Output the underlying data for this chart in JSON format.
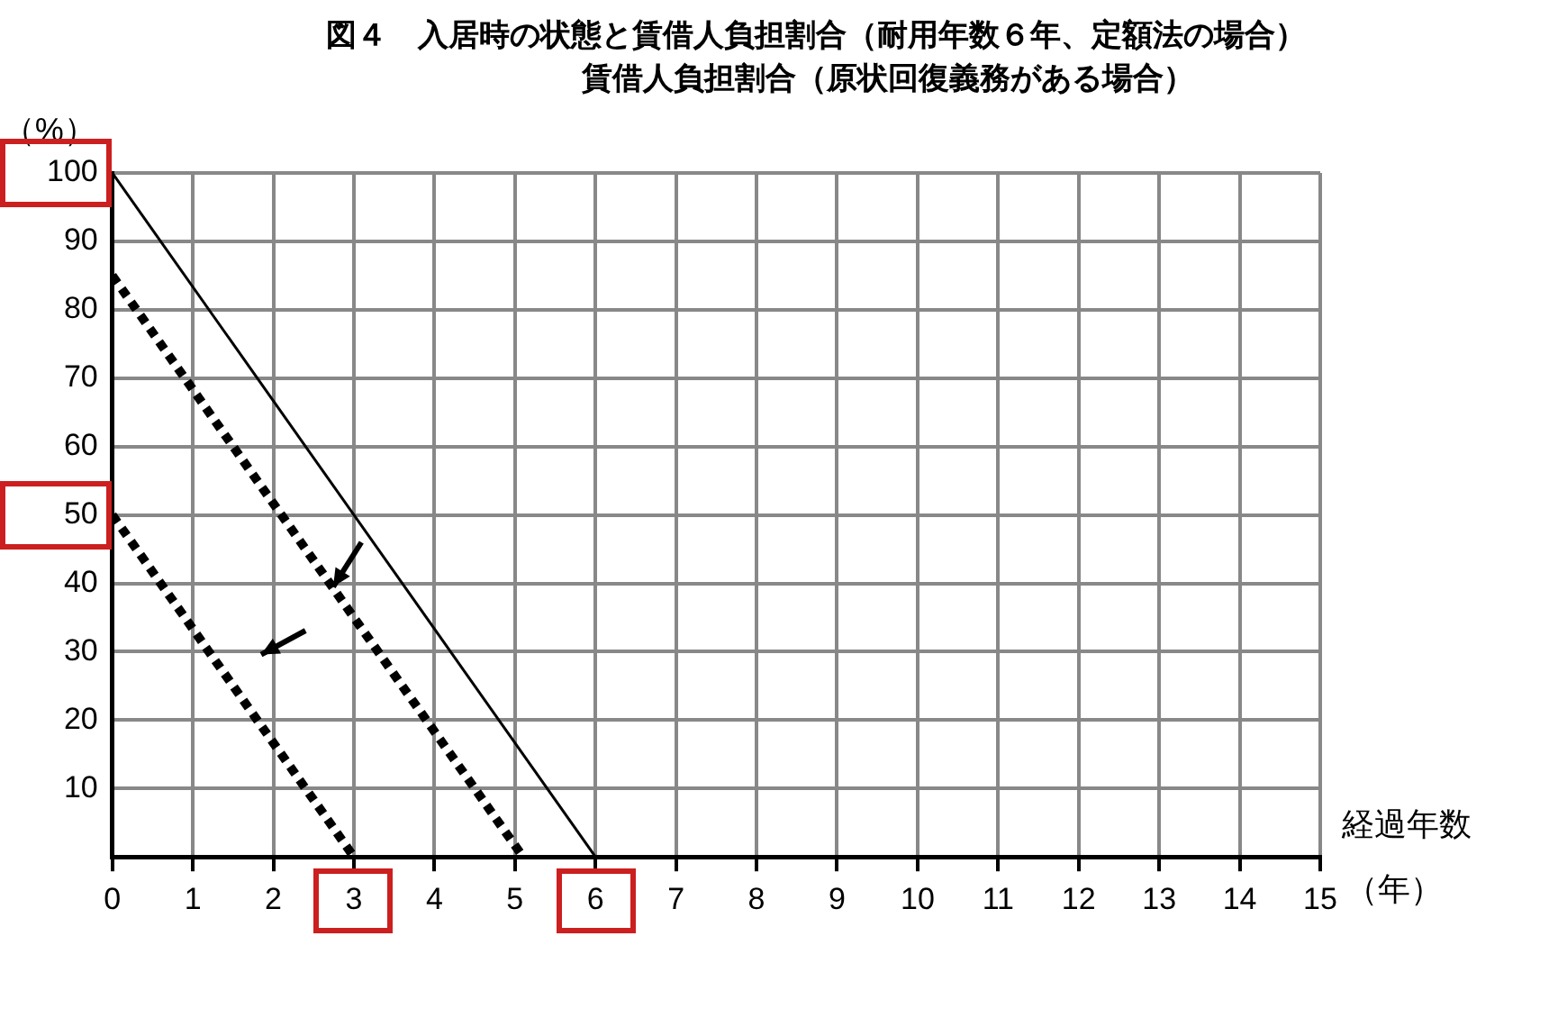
{
  "chart_data": {
    "type": "line",
    "title": "図４　入居時の状態と賃借人負担割合（耐用年数６年、定額法の場合）",
    "subtitle": "賃借人負担割合（原状回復義務がある場合）",
    "ylabel": "（%）",
    "xlabel": "経過年数",
    "annotations": [
      "（年）"
    ],
    "series": [
      {
        "color": "#000000",
        "line_style": "solid",
        "x": [
          0,
          6
        ],
        "values": [
          100,
          0
        ]
      },
      {
        "color": "#000000",
        "line_style": "dotted",
        "x": [
          0,
          5.1
        ],
        "values": [
          85,
          0
        ]
      },
      {
        "color": "#000000",
        "line_style": "dotted",
        "x": [
          0,
          3
        ],
        "values": [
          50,
          0
        ]
      }
    ],
    "xlim": [
      0,
      15
    ],
    "xticks": [
      0,
      1,
      2,
      3,
      4,
      5,
      6,
      7,
      8,
      9,
      10,
      11,
      12,
      13,
      14,
      15
    ],
    "ylim": [
      0,
      100
    ],
    "yticks": [
      {
        "value": 0,
        "label": null
      },
      10,
      20,
      30,
      40,
      50,
      60,
      70,
      80,
      90,
      100
    ],
    "grid": true,
    "legend": false,
    "marker": "none"
  }
}
